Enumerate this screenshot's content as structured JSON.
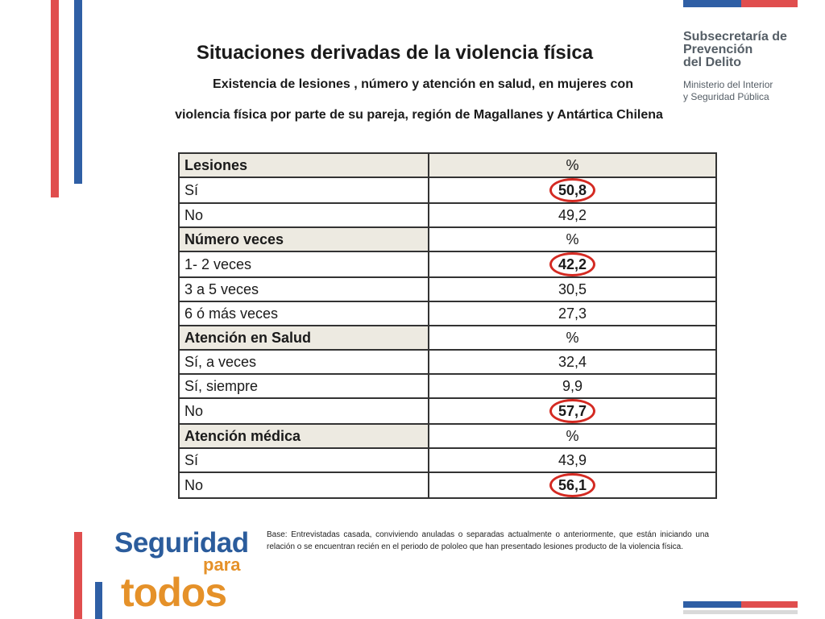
{
  "title": "Situaciones derivadas de la violencia física",
  "subtitle_line1": "Existencia de lesiones , número y atención en salud,  en mujeres con",
  "subtitle_line2": "violencia  física por parte de su pareja, región de Magallanes y Antártica Chilena",
  "org": {
    "line1": "Subsecretaría de",
    "line2": "Prevención",
    "line3": "del Delito",
    "ministry1": "Ministerio del Interior",
    "ministry2": "y Seguridad Pública"
  },
  "table": {
    "rows": [
      {
        "label": "Lesiones",
        "value": "%",
        "type": "header"
      },
      {
        "label": "Sí",
        "value": "50,8",
        "type": "highlight"
      },
      {
        "label": "No",
        "value": "49,2",
        "type": "normal"
      },
      {
        "label": "Número veces",
        "value": "%",
        "type": "header"
      },
      {
        "label": "1- 2 veces",
        "value": "42,2",
        "type": "highlight"
      },
      {
        "label": "3 a 5 veces",
        "value": "30,5",
        "type": "normal"
      },
      {
        "label": "6 ó más veces",
        "value": "27,3",
        "type": "normal"
      },
      {
        "label": " Atención en Salud",
        "value": "%",
        "type": "header"
      },
      {
        "label": "Sí, a veces",
        "value": "32,4",
        "type": "normal"
      },
      {
        "label": "Sí, siempre",
        "value": "9,9",
        "type": "normal"
      },
      {
        "label": "No",
        "value": "57,7",
        "type": "highlight"
      },
      {
        "label": "Atención  médica",
        "value": "%",
        "type": "header"
      },
      {
        "label": "Sí",
        "value": "43,9",
        "type": "normal"
      },
      {
        "label": "No",
        "value": "56,1",
        "type": "highlight"
      }
    ]
  },
  "note": "Base: Entrevistadas casada, conviviendo anuladas o separadas actualmente o anteriormente, que están iniciando una relación o se encuentran recién en el periodo de  pololeo que han presentado lesiones producto de la violencia física.",
  "logo": {
    "word1": "Seguridad",
    "word2": "para",
    "word3": "todos"
  },
  "colors": {
    "accent_red": "#e04e4e",
    "accent_blue": "#2f5fa5",
    "highlight_ring": "#d42a22"
  }
}
